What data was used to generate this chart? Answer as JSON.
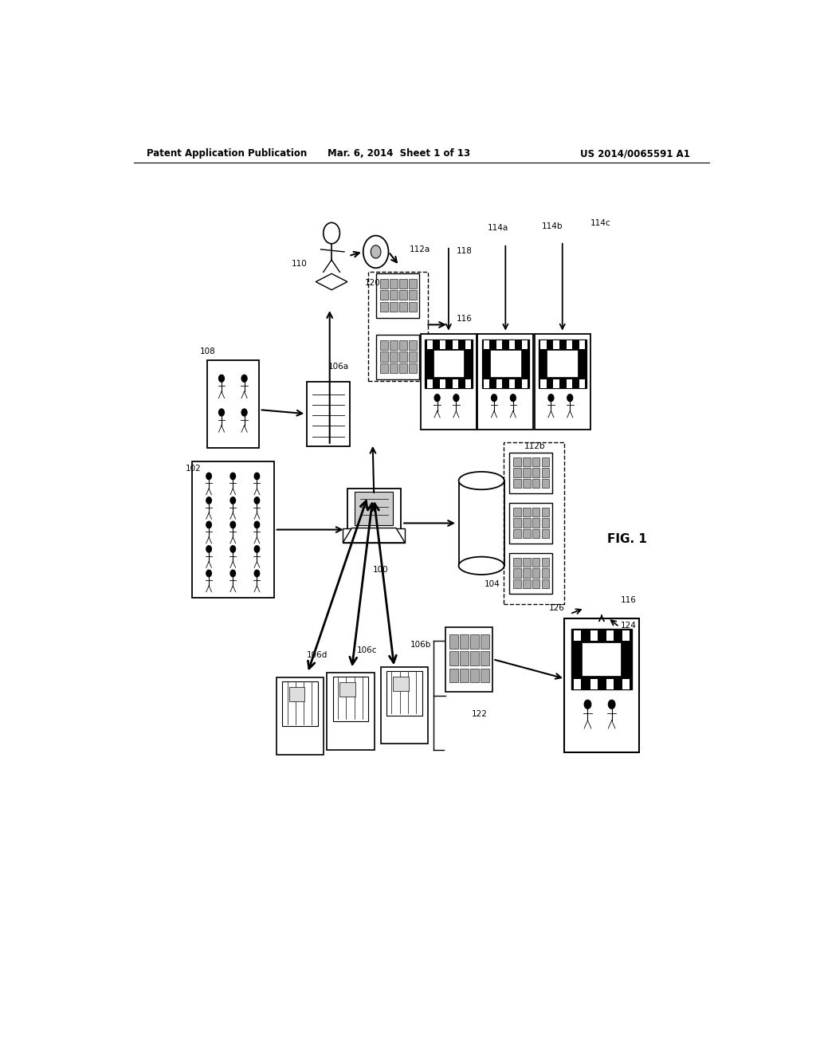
{
  "bg_color": "#ffffff",
  "line_color": "#000000",
  "header_left": "Patent Application Publication",
  "header_mid": "Mar. 6, 2014  Sheet 1 of 13",
  "header_right": "US 2014/0065591 A1",
  "fig_label": "FIG. 1"
}
